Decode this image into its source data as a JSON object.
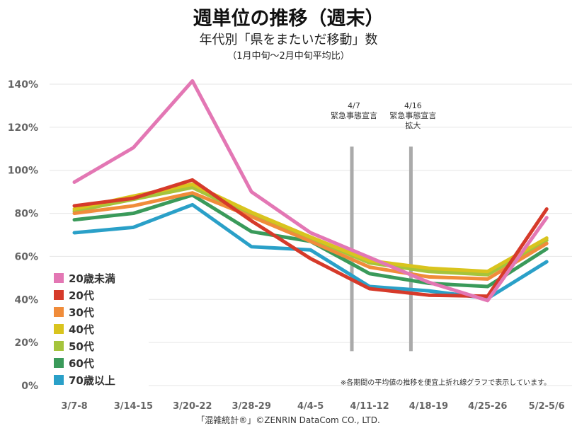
{
  "header": {
    "title": "週単位の推移（週末）",
    "subtitle": "年代別「県をまたいだ移動」数",
    "subtitle2": "（1月中旬～2月中旬平均比）"
  },
  "chart_data": {
    "type": "line",
    "title": "週単位の推移（週末）",
    "subtitle": "年代別「県をまたいだ移動」数（1月中旬～2月中旬平均比）",
    "xlabel": "",
    "ylabel": "",
    "ylim": [
      0,
      140
    ],
    "yticks": [
      "0%",
      "20%",
      "40%",
      "60%",
      "80%",
      "100%",
      "120%",
      "140%"
    ],
    "yticks_values": [
      0,
      20,
      40,
      60,
      80,
      100,
      120,
      140
    ],
    "grid": "horizontal",
    "legend": "bottom-left",
    "categories": [
      "3/7-8",
      "3/14-15",
      "3/20-22",
      "3/28-29",
      "4/4-5",
      "4/11-12",
      "4/18-19",
      "4/25-26",
      "5/2-5/6"
    ],
    "series": [
      {
        "name": "20歳未満",
        "color": "#e377b4",
        "values": [
          94.5,
          110.5,
          141.5,
          90.0,
          71.0,
          59.5,
          48.0,
          39.5,
          78.0
        ]
      },
      {
        "name": "20代",
        "color": "#d63a2a",
        "values": [
          83.5,
          87.0,
          95.5,
          76.5,
          59.0,
          45.0,
          42.0,
          41.5,
          82.0
        ]
      },
      {
        "name": "30代",
        "color": "#f08c3a",
        "values": [
          80.0,
          83.5,
          89.5,
          78.5,
          67.0,
          55.0,
          50.5,
          49.5,
          66.0
        ]
      },
      {
        "name": "40代",
        "color": "#d9c41e",
        "values": [
          82.0,
          88.0,
          93.5,
          80.5,
          69.0,
          58.0,
          54.5,
          53.0,
          68.5
        ]
      },
      {
        "name": "50代",
        "color": "#a5c43c",
        "values": [
          81.0,
          86.5,
          92.0,
          79.0,
          68.5,
          57.0,
          53.0,
          51.5,
          67.5
        ]
      },
      {
        "name": "60代",
        "color": "#3a9a5a",
        "values": [
          77.0,
          80.0,
          88.5,
          71.5,
          67.0,
          52.0,
          47.5,
          46.0,
          63.5
        ]
      },
      {
        "name": "70歳以上",
        "color": "#2aa0c8",
        "values": [
          71.0,
          73.5,
          84.0,
          64.5,
          63.0,
          46.0,
          44.0,
          40.5,
          57.5
        ]
      }
    ],
    "annotations": [
      {
        "category": "4/11-12",
        "lines": [
          "4/7",
          "緊急事態宣言"
        ],
        "color": "#aaaaaa"
      },
      {
        "category": "4/18-19",
        "lines": [
          "4/16",
          "緊急事態宣言",
          "拡大"
        ],
        "color": "#aaaaaa"
      }
    ],
    "note": "※各期間の平均値の推移を便宜上折れ線グラフで表示しています。",
    "copyright": "「混雑統計®」©ZENRIN DataCom CO., LTD."
  }
}
